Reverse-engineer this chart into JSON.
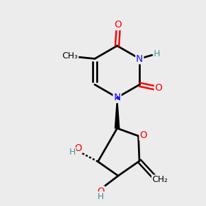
{
  "bg_color": "#ececec",
  "atom_colors": {
    "C": "#000000",
    "N": "#1414ff",
    "O": "#ff0000",
    "H": "#4a9090"
  },
  "bond_color": "#000000",
  "figsize": [
    3.0,
    3.0
  ],
  "dpi": 100
}
